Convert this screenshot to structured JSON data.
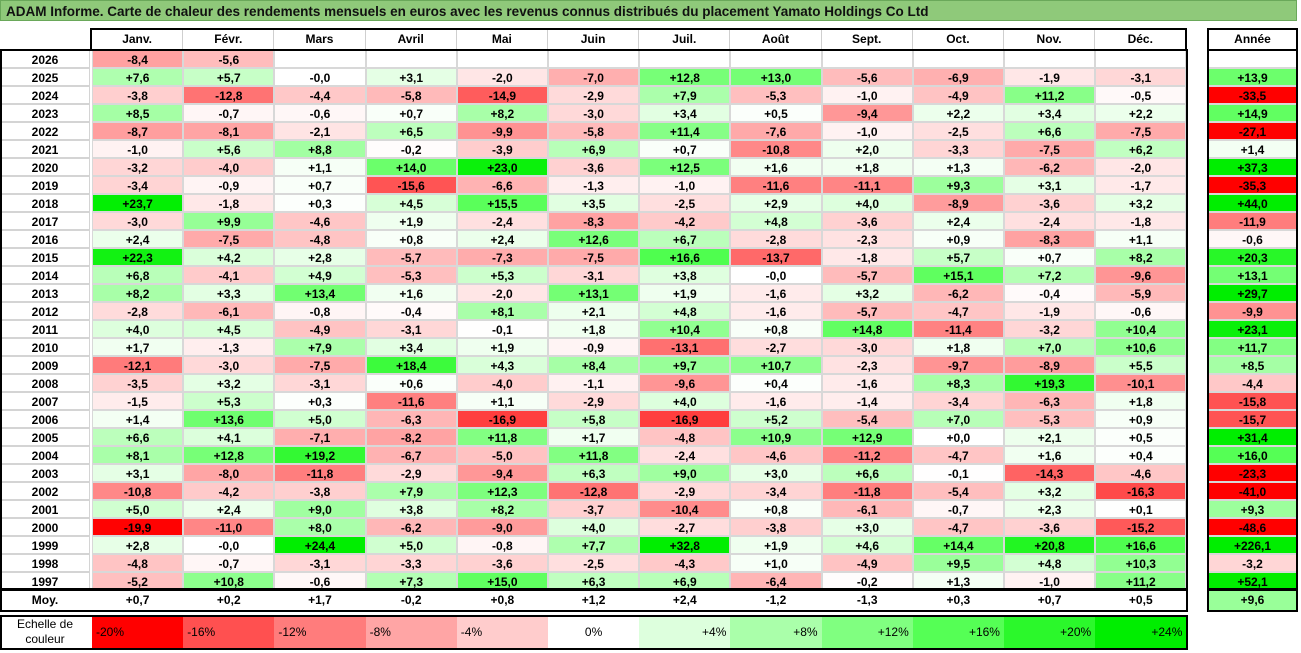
{
  "title": "ADAM Informe. Carte de chaleur des rendements mensuels en euros avec les revenus connus distribués du placement Yamato Holdings Co Ltd",
  "annual_header": "Année",
  "avg_label": "Moy.",
  "scale_label": "Echelle de couleur",
  "chart_data": {
    "type": "heatmap",
    "months": [
      "Janv.",
      "Févr.",
      "Mars",
      "Avril",
      "Mai",
      "Juin",
      "Juil.",
      "Août",
      "Sept.",
      "Oct.",
      "Nov.",
      "Déc."
    ],
    "rows": [
      {
        "year": "2026",
        "values": [
          "-8,4",
          "-5,6",
          "",
          "",
          "",
          "",
          "",
          "",
          "",
          "",
          "",
          ""
        ],
        "annual": ""
      },
      {
        "year": "2025",
        "values": [
          "+7,6",
          "+5,7",
          "-0,0",
          "+3,1",
          "-2,0",
          "-7,0",
          "+12,8",
          "+13,0",
          "-5,6",
          "-6,9",
          "-1,9",
          "-3,1"
        ],
        "annual": "+13,9"
      },
      {
        "year": "2024",
        "values": [
          "-3,8",
          "-12,8",
          "-4,4",
          "-5,8",
          "-14,9",
          "-2,9",
          "+7,9",
          "-5,3",
          "-1,0",
          "-4,9",
          "+11,2",
          "-0,5"
        ],
        "annual": "-33,5"
      },
      {
        "year": "2023",
        "values": [
          "+8,5",
          "-0,7",
          "-0,6",
          "+0,7",
          "+8,2",
          "-3,0",
          "+3,4",
          "+0,5",
          "-9,4",
          "+2,2",
          "+3,4",
          "+2,2"
        ],
        "annual": "+14,9"
      },
      {
        "year": "2022",
        "values": [
          "-8,7",
          "-8,1",
          "-2,1",
          "+6,5",
          "-9,9",
          "-5,8",
          "+11,4",
          "-7,6",
          "-1,0",
          "-2,5",
          "+6,6",
          "-7,5"
        ],
        "annual": "-27,1"
      },
      {
        "year": "2021",
        "values": [
          "-1,0",
          "+5,6",
          "+8,8",
          "-0,2",
          "-3,9",
          "+6,9",
          "+0,7",
          "-10,8",
          "+2,0",
          "-3,3",
          "-7,5",
          "+6,2"
        ],
        "annual": "+1,4"
      },
      {
        "year": "2020",
        "values": [
          "-3,2",
          "-4,0",
          "+1,1",
          "+14,0",
          "+23,0",
          "-3,6",
          "+12,5",
          "+1,6",
          "+1,8",
          "+1,3",
          "-6,2",
          "-2,0"
        ],
        "annual": "+37,3"
      },
      {
        "year": "2019",
        "values": [
          "-3,4",
          "-0,9",
          "+0,7",
          "-15,6",
          "-6,6",
          "-1,3",
          "-1,0",
          "-11,6",
          "-11,1",
          "+9,3",
          "+3,1",
          "-1,7"
        ],
        "annual": "-35,3"
      },
      {
        "year": "2018",
        "values": [
          "+23,7",
          "-1,8",
          "+0,3",
          "+4,5",
          "+15,5",
          "+3,5",
          "-2,5",
          "+2,9",
          "+4,0",
          "-8,9",
          "-3,6",
          "+3,2"
        ],
        "annual": "+44,0"
      },
      {
        "year": "2017",
        "values": [
          "-3,0",
          "+9,9",
          "-4,6",
          "+1,9",
          "-2,4",
          "-8,3",
          "-4,2",
          "+4,8",
          "-3,6",
          "+2,4",
          "-2,4",
          "-1,8"
        ],
        "annual": "-11,9"
      },
      {
        "year": "2016",
        "values": [
          "+2,4",
          "-7,5",
          "-4,8",
          "+0,8",
          "+2,4",
          "+12,6",
          "+6,7",
          "-2,8",
          "-2,3",
          "+0,9",
          "-8,3",
          "+1,1"
        ],
        "annual": "-0,6"
      },
      {
        "year": "2015",
        "values": [
          "+22,3",
          "+4,2",
          "+2,8",
          "-5,7",
          "-7,3",
          "-7,5",
          "+16,6",
          "-13,7",
          "-1,8",
          "+5,7",
          "+0,7",
          "+8,2"
        ],
        "annual": "+20,3"
      },
      {
        "year": "2014",
        "values": [
          "+6,8",
          "-4,1",
          "+4,9",
          "-5,3",
          "+5,3",
          "-3,1",
          "+3,8",
          "-0,0",
          "-5,7",
          "+15,1",
          "+7,2",
          "-9,6"
        ],
        "annual": "+13,1"
      },
      {
        "year": "2013",
        "values": [
          "+8,2",
          "+3,3",
          "+13,4",
          "+1,6",
          "-2,0",
          "+13,1",
          "+1,9",
          "-1,6",
          "+3,2",
          "-6,2",
          "-0,4",
          "-5,9"
        ],
        "annual": "+29,7"
      },
      {
        "year": "2012",
        "values": [
          "-2,8",
          "-6,1",
          "-0,8",
          "-0,4",
          "+8,1",
          "+2,1",
          "+4,8",
          "-1,6",
          "-5,7",
          "-4,7",
          "-1,9",
          "-0,6"
        ],
        "annual": "-9,9"
      },
      {
        "year": "2011",
        "values": [
          "+4,0",
          "+4,5",
          "-4,9",
          "-3,1",
          "-0,1",
          "+1,8",
          "+10,4",
          "+0,8",
          "+14,8",
          "-11,4",
          "-3,2",
          "+10,4"
        ],
        "annual": "+23,1"
      },
      {
        "year": "2010",
        "values": [
          "+1,7",
          "-1,3",
          "+7,9",
          "+3,4",
          "+1,9",
          "-0,9",
          "-13,1",
          "-2,7",
          "-3,0",
          "+1,8",
          "+7,0",
          "+10,6"
        ],
        "annual": "+11,7"
      },
      {
        "year": "2009",
        "values": [
          "-12,1",
          "-3,0",
          "-7,5",
          "+18,4",
          "+4,3",
          "+8,4",
          "+9,7",
          "+10,7",
          "-2,3",
          "-9,7",
          "-8,9",
          "+5,5"
        ],
        "annual": "+8,5"
      },
      {
        "year": "2008",
        "values": [
          "-3,5",
          "+3,2",
          "-3,1",
          "+0,6",
          "-4,0",
          "-1,1",
          "-9,6",
          "+0,4",
          "-1,6",
          "+8,3",
          "+19,3",
          "-10,1"
        ],
        "annual": "-4,4"
      },
      {
        "year": "2007",
        "values": [
          "-1,5",
          "+5,3",
          "+0,3",
          "-11,6",
          "+1,1",
          "-2,9",
          "+4,0",
          "-1,6",
          "-1,4",
          "-3,4",
          "-6,3",
          "+1,8"
        ],
        "annual": "-15,8"
      },
      {
        "year": "2006",
        "values": [
          "+1,4",
          "+13,6",
          "+5,0",
          "-6,3",
          "-16,9",
          "+5,8",
          "-16,9",
          "+5,2",
          "-5,4",
          "+7,0",
          "-5,3",
          "+0,9"
        ],
        "annual": "-15,7"
      },
      {
        "year": "2005",
        "values": [
          "+6,6",
          "+4,1",
          "-7,1",
          "-8,2",
          "+11,8",
          "+1,7",
          "-4,8",
          "+10,9",
          "+12,9",
          "+0,0",
          "+2,1",
          "+0,5"
        ],
        "annual": "+31,4"
      },
      {
        "year": "2004",
        "values": [
          "+8,1",
          "+12,8",
          "+19,2",
          "-6,7",
          "-5,0",
          "+11,8",
          "-2,4",
          "-4,6",
          "-11,2",
          "-4,7",
          "+1,6",
          "+0,4"
        ],
        "annual": "+16,0"
      },
      {
        "year": "2003",
        "values": [
          "+3,1",
          "-8,0",
          "-11,8",
          "-2,9",
          "-9,4",
          "+6,3",
          "+9,0",
          "+3,0",
          "+6,6",
          "-0,1",
          "-14,3",
          "-4,6"
        ],
        "annual": "-23,3"
      },
      {
        "year": "2002",
        "values": [
          "-10,8",
          "-4,2",
          "-3,8",
          "+7,9",
          "+12,3",
          "-12,8",
          "-2,9",
          "-3,4",
          "-11,8",
          "-5,4",
          "+3,2",
          "-16,3"
        ],
        "annual": "-41,0"
      },
      {
        "year": "2001",
        "values": [
          "+5,0",
          "+2,4",
          "+9,0",
          "+3,8",
          "+8,2",
          "-3,7",
          "-10,4",
          "+0,8",
          "-6,1",
          "-0,7",
          "+2,3",
          "+0,1"
        ],
        "annual": "+9,3"
      },
      {
        "year": "2000",
        "values": [
          "-19,9",
          "-11,0",
          "+8,0",
          "-6,2",
          "-9,0",
          "+4,0",
          "-2,7",
          "-3,8",
          "+3,0",
          "-4,7",
          "-3,6",
          "-15,2"
        ],
        "annual": "-48,6"
      },
      {
        "year": "1999",
        "values": [
          "+2,8",
          "-0,0",
          "+24,4",
          "+5,0",
          "-0,8",
          "+7,7",
          "+32,8",
          "+1,9",
          "+4,6",
          "+14,4",
          "+20,8",
          "+16,6"
        ],
        "annual": "+226,1"
      },
      {
        "year": "1998",
        "values": [
          "-4,8",
          "-0,7",
          "-3,1",
          "-3,3",
          "-3,6",
          "-2,5",
          "-4,3",
          "+1,0",
          "-4,9",
          "+9,5",
          "+4,8",
          "+10,3"
        ],
        "annual": "-3,2"
      },
      {
        "year": "1997",
        "values": [
          "-5,2",
          "+10,8",
          "-0,6",
          "+7,3",
          "+15,0",
          "+6,3",
          "+6,9",
          "-6,4",
          "-0,2",
          "+1,3",
          "-1,0",
          "+11,2"
        ],
        "annual": "+52,1"
      }
    ],
    "averages": [
      "+0,7",
      "+0,2",
      "+1,7",
      "-0,2",
      "+0,8",
      "+1,2",
      "+2,4",
      "-1,2",
      "-1,3",
      "+0,3",
      "+0,7",
      "+0,5"
    ],
    "annual_average": "+9,6",
    "scale": [
      "-20%",
      "-16%",
      "-12%",
      "-8%",
      "-4%",
      "0%",
      "+4%",
      "+8%",
      "+12%",
      "+16%",
      "+20%",
      "+24%"
    ],
    "scale_colors": [
      "#ff0000",
      "#ff5050",
      "#ff7c7c",
      "#ffa5a5",
      "#ffcccc",
      "#ffffff",
      "#ddffdd",
      "#aaffaa",
      "#80ff80",
      "#55ff55",
      "#2bf82b",
      "#00ee00"
    ]
  }
}
